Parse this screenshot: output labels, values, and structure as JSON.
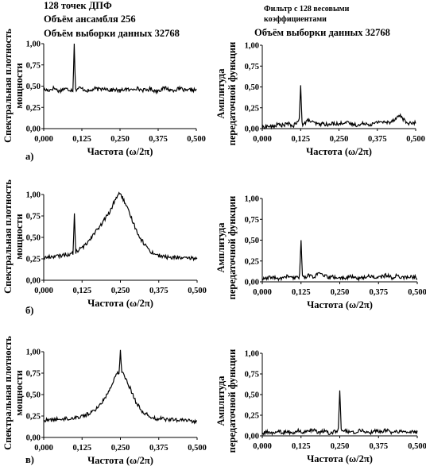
{
  "header_left": {
    "line1": "128 точек ДПФ",
    "line2": "Объём ансамбля 256",
    "line3": "Объём выборки данных 32768"
  },
  "header_right": {
    "line1": "Фильтр с 128 весовыми",
    "line2": "коэффициентами",
    "line3": "Объём выборки данных 32768"
  },
  "left_ylabel": [
    "Спектральная плотность",
    "мощности"
  ],
  "right_ylabel": [
    "Амплитуда",
    "передаточной функции"
  ],
  "panel_labels": [
    "а)",
    "б)",
    "в)"
  ],
  "chart_data": [
    {
      "type": "line",
      "panel": "a-left",
      "xlabel": "Частота (ω/2π)",
      "ylabel": "Спектральная плотность мощности",
      "xlim": [
        0,
        0.5
      ],
      "ylim": [
        0,
        1.0
      ],
      "xticks": [
        "0,000",
        "0,125",
        "0,250",
        "0,375",
        "0,500"
      ],
      "yticks": [
        "0,00",
        "0,25",
        "0,50",
        "0,75",
        "1,00"
      ],
      "baseline": [
        0.46,
        0.45,
        0.48,
        0.44,
        0.47,
        0.46,
        0.45,
        0.48,
        0.46,
        0.44,
        0.47,
        0.46,
        0.48,
        0.45,
        0.46,
        0.44,
        0.47,
        0.45,
        0.48,
        0.46,
        0.45,
        0.47,
        0.44,
        0.46,
        0.48,
        0.45,
        0.46,
        0.47,
        0.44,
        0.46,
        0.45
      ],
      "peaks": [
        {
          "x": 0.1,
          "y": 1.0,
          "w": 0.004
        }
      ]
    },
    {
      "type": "line",
      "panel": "a-right",
      "xlabel": "Частота (ω/2π)",
      "ylabel": "Амплитуда передаточной функции",
      "xlim": [
        0,
        0.5
      ],
      "ylim": [
        0,
        1.0
      ],
      "xticks": [
        "0,000",
        "0,125",
        "0,250",
        "0,375",
        "0,500"
      ],
      "yticks": [
        "0,00",
        "0,25",
        "0,50",
        "0,75",
        "1,00"
      ],
      "baseline": [
        0.01,
        0.03,
        0.02,
        0.05,
        0.04,
        0.06,
        0.03,
        0.08,
        0.05,
        0.1,
        0.07,
        0.05,
        0.06,
        0.04,
        0.07,
        0.05,
        0.08,
        0.06,
        0.05,
        0.04,
        0.07,
        0.05,
        0.06,
        0.09,
        0.07,
        0.08,
        0.12,
        0.16,
        0.08,
        0.06,
        0.07
      ],
      "peaks": [
        {
          "x": 0.125,
          "y": 0.52,
          "w": 0.005
        }
      ]
    },
    {
      "type": "line",
      "panel": "b-left",
      "xlabel": "Частота (ω/2π)",
      "ylabel": "Спектральная плотность мощности",
      "xlim": [
        0,
        0.5
      ],
      "ylim": [
        0,
        1.0
      ],
      "xticks": [
        "0,000",
        "0,125",
        "0,250",
        "0,375",
        "0,500"
      ],
      "yticks": [
        "0,00",
        "0,25",
        "0,50",
        "0,75",
        "1,00"
      ],
      "baseline": [
        0.26,
        0.27,
        0.28,
        0.28,
        0.3,
        0.3,
        0.32,
        0.36,
        0.4,
        0.48,
        0.56,
        0.62,
        0.72,
        0.8,
        0.95,
        1.02,
        0.88,
        0.75,
        0.6,
        0.48,
        0.4,
        0.33,
        0.3,
        0.28,
        0.27,
        0.26,
        0.27,
        0.26,
        0.25,
        0.26,
        0.25
      ],
      "peaks": [
        {
          "x": 0.1,
          "y": 0.78,
          "w": 0.004
        }
      ]
    },
    {
      "type": "line",
      "panel": "b-right",
      "xlabel": "Частота (ω/2π)",
      "ylabel": "Амплитуда передаточной функции",
      "xlim": [
        0,
        0.5
      ],
      "ylim": [
        0,
        1.0
      ],
      "xticks": [
        "0,000",
        "0,125",
        "0,250",
        "0,375",
        "0,500"
      ],
      "yticks": [
        "0,00",
        "0,25",
        "0,50",
        "0,75",
        "1,00"
      ],
      "baseline": [
        0.03,
        0.04,
        0.06,
        0.03,
        0.05,
        0.07,
        0.04,
        0.06,
        0.05,
        0.08,
        0.06,
        0.1,
        0.07,
        0.05,
        0.06,
        0.04,
        0.05,
        0.06,
        0.05,
        0.04,
        0.06,
        0.07,
        0.05,
        0.06,
        0.08,
        0.05,
        0.07,
        0.06,
        0.05,
        0.06,
        0.05
      ],
      "peaks": [
        {
          "x": 0.125,
          "y": 0.5,
          "w": 0.005
        }
      ]
    },
    {
      "type": "line",
      "panel": "c-left",
      "xlabel": "Частота (ω/2π)",
      "ylabel": "Спектральная плотность мощности",
      "xlim": [
        0,
        0.5
      ],
      "ylim": [
        0,
        1.0
      ],
      "xticks": [
        "0,000",
        "0,125",
        "0,250",
        "0,375",
        "0,500"
      ],
      "yticks": [
        "0,00",
        "0,25",
        "0,50",
        "0,75",
        "1,00"
      ],
      "baseline": [
        0.2,
        0.2,
        0.21,
        0.21,
        0.22,
        0.22,
        0.23,
        0.24,
        0.26,
        0.28,
        0.32,
        0.38,
        0.46,
        0.58,
        0.72,
        0.78,
        0.7,
        0.56,
        0.42,
        0.32,
        0.27,
        0.24,
        0.22,
        0.22,
        0.21,
        0.21,
        0.2,
        0.2,
        0.2,
        0.19,
        0.19
      ],
      "peaks": [
        {
          "x": 0.25,
          "y": 1.02,
          "w": 0.004
        }
      ]
    },
    {
      "type": "line",
      "panel": "c-right",
      "xlabel": "Частота (ω/2π)",
      "ylabel": "Амплитуда передаточной функции",
      "xlim": [
        0,
        0.5
      ],
      "ylim": [
        0,
        1.0
      ],
      "xticks": [
        "0,000",
        "0,125",
        "0,250",
        "0,375",
        "0,500"
      ],
      "yticks": [
        "0,00",
        "0,25",
        "0,50",
        "0,75",
        "1,00"
      ],
      "baseline": [
        0.02,
        0.05,
        0.03,
        0.06,
        0.04,
        0.05,
        0.03,
        0.06,
        0.04,
        0.05,
        0.07,
        0.04,
        0.06,
        0.03,
        0.05,
        0.04,
        0.06,
        0.05,
        0.04,
        0.07,
        0.05,
        0.04,
        0.06,
        0.05,
        0.07,
        0.04,
        0.05,
        0.06,
        0.04,
        0.05,
        0.04
      ],
      "peaks": [
        {
          "x": 0.25,
          "y": 0.55,
          "w": 0.005
        }
      ]
    }
  ]
}
